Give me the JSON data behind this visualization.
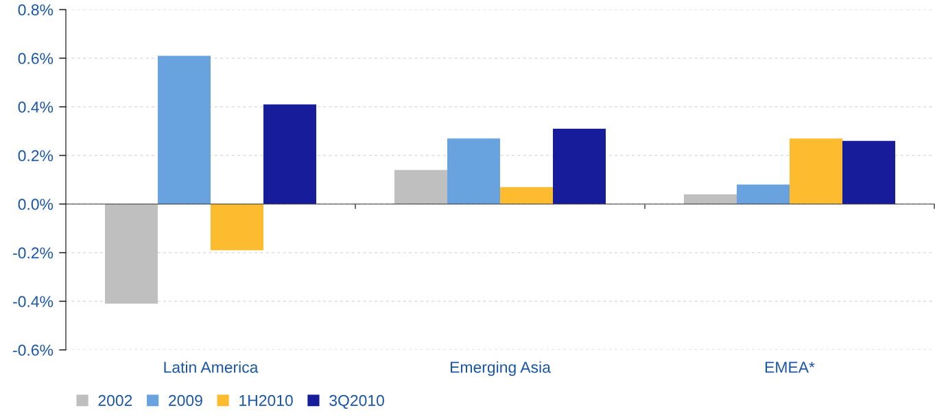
{
  "chart_data": {
    "type": "bar",
    "categories": [
      "Latin America",
      "Emerging Asia",
      "EMEA*"
    ],
    "series": [
      {
        "name": "2002",
        "color": "#bfbfbf",
        "values": [
          -0.41,
          0.14,
          0.04
        ]
      },
      {
        "name": "2009",
        "color": "#68a2df",
        "values": [
          0.61,
          0.27,
          0.08
        ]
      },
      {
        "name": "1H2010",
        "color": "#fdbb2f",
        "values": [
          -0.19,
          0.07,
          0.27
        ]
      },
      {
        "name": "3Q2010",
        "color": "#171c9a",
        "values": [
          0.41,
          0.31,
          0.26
        ]
      }
    ],
    "ylim": [
      -0.6,
      0.8
    ],
    "yticks": [
      {
        "value": -0.6,
        "label": "-0.6%"
      },
      {
        "value": -0.4,
        "label": "-0.4%"
      },
      {
        "value": -0.2,
        "label": "-0.2%"
      },
      {
        "value": 0.0,
        "label": "0.0%"
      },
      {
        "value": 0.2,
        "label": "0.2%"
      },
      {
        "value": 0.4,
        "label": "0.4%"
      },
      {
        "value": 0.6,
        "label": "0.6%"
      },
      {
        "value": 0.8,
        "label": "0.8%"
      }
    ],
    "grid": "y",
    "legend": "bottom"
  }
}
